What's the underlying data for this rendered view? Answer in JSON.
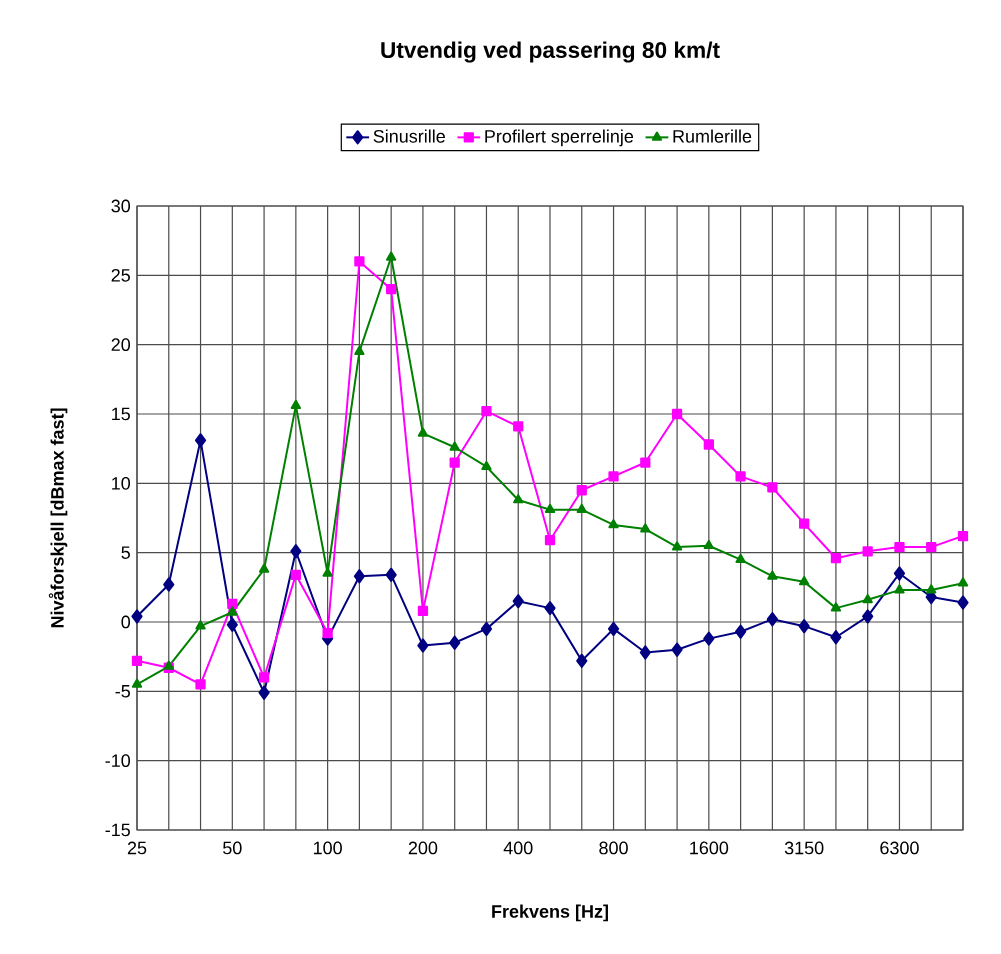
{
  "chart_data": {
    "type": "line",
    "title": "Utvendig ved passering 80 km/t",
    "xlabel": "Frekvens [Hz]",
    "ylabel": "Nivåforskjell [dBmax fast]",
    "categories": [
      "25",
      null,
      null,
      "50",
      null,
      null,
      "100",
      null,
      null,
      "200",
      null,
      null,
      "400",
      null,
      null,
      "800",
      null,
      null,
      "1600",
      null,
      null,
      "3150",
      null,
      null,
      "6300",
      null,
      null
    ],
    "series": [
      {
        "name": "Sinusrille",
        "color": "#000080",
        "marker": "diamond",
        "values": [
          0.4,
          2.7,
          13.1,
          -0.2,
          -5.1,
          5.1,
          -1.2,
          3.3,
          3.4,
          -1.7,
          -1.5,
          -0.5,
          1.5,
          1.0,
          -2.8,
          -0.5,
          -2.2,
          -2.0,
          -1.2,
          -0.7,
          0.2,
          -0.3,
          -1.1,
          0.4,
          3.5,
          1.8,
          1.4
        ]
      },
      {
        "name": "Profilert sperrelinje",
        "color": "#ff00ff",
        "marker": "square",
        "values": [
          -2.8,
          -3.3,
          -4.5,
          1.3,
          -4.0,
          3.4,
          -0.8,
          26.0,
          24.0,
          0.8,
          11.5,
          15.2,
          14.1,
          5.9,
          9.5,
          10.5,
          11.5,
          15.0,
          12.8,
          10.5,
          9.7,
          7.1,
          4.6,
          5.1,
          5.4,
          5.4,
          6.2
        ]
      },
      {
        "name": "Rumlerille",
        "color": "#008000",
        "marker": "triangle",
        "values": [
          -4.5,
          -3.2,
          -0.3,
          0.7,
          3.8,
          15.6,
          3.5,
          19.5,
          26.3,
          13.6,
          12.6,
          11.2,
          8.8,
          8.1,
          8.1,
          7.0,
          6.7,
          5.4,
          5.5,
          4.5,
          3.3,
          2.9,
          1.0,
          1.6,
          2.3,
          2.3,
          2.8
        ]
      }
    ],
    "ylim": [
      -15,
      30
    ],
    "yticks": [
      -15,
      -10,
      -5,
      0,
      5,
      10,
      15,
      20,
      25,
      30
    ],
    "grid": true,
    "legend": "top",
    "line_style": "solid"
  }
}
